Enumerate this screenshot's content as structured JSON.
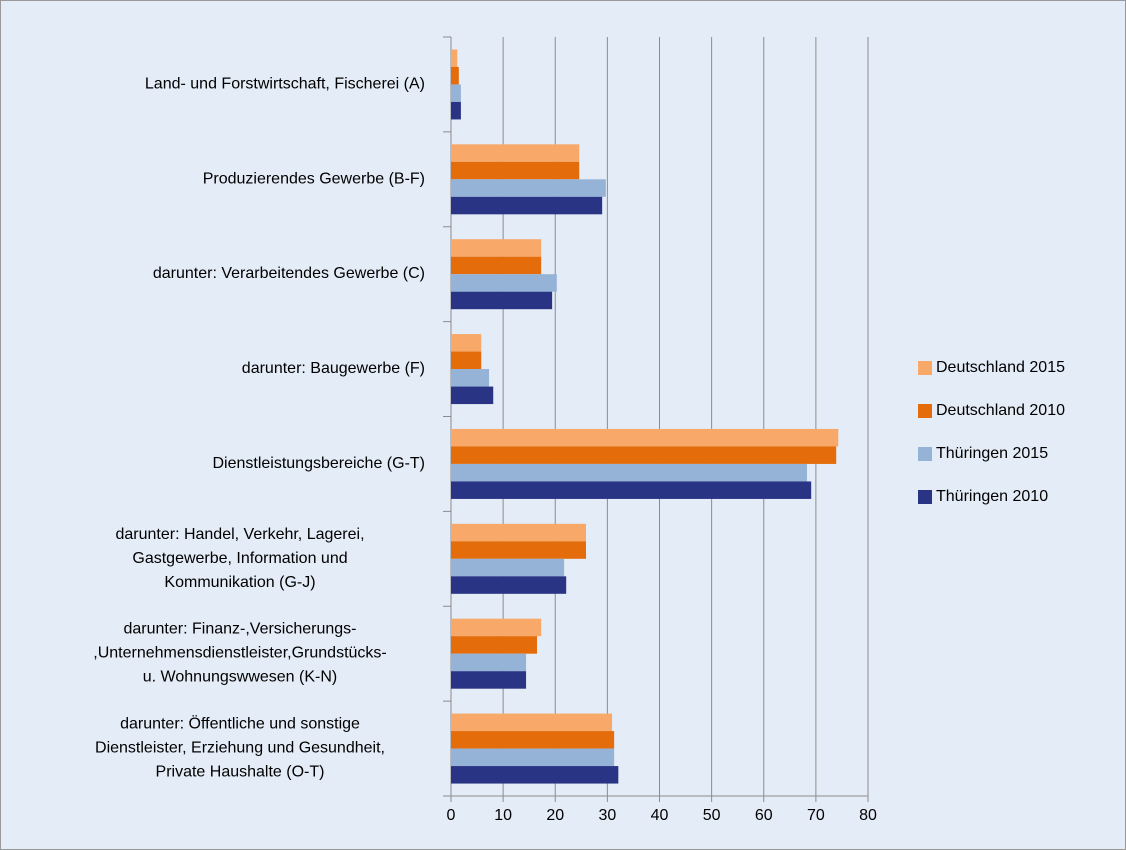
{
  "chart_data": {
    "type": "hbar",
    "categories": [
      "Land- und Forstwirtschaft,  Fischerei (A)",
      "Produzierendes Gewerbe (B-F)",
      "darunter: Verarbeitendes Gewerbe (C)",
      "darunter: Baugewerbe (F)",
      "Dienstleistungsbereiche (G-T)",
      "darunter: Handel, Verkehr, Lagerei,\nGastgewerbe, Information  und\nKommunikation (G-J)",
      "darunter: Finanz-,Versicherungs-\n,Unternehmensdienstleister,Grundstücks-\nu. Wohnungswwesen  (K-N)",
      "darunter: Öffentliche und sonstige\nDienstleister, Erziehung und Gesundheit,\nPrivate Haushalte  (O-T)"
    ],
    "series": [
      {
        "name": "Deutschland 2015",
        "color": "#f8a96a",
        "values": [
          1.2,
          24.6,
          17.3,
          5.8,
          74.3,
          25.9,
          17.3,
          30.9
        ]
      },
      {
        "name": "Deutschland 2010",
        "color": "#e46c0a",
        "values": [
          1.5,
          24.6,
          17.3,
          5.8,
          73.9,
          25.9,
          16.5,
          31.3
        ]
      },
      {
        "name": "Thüringen 2015",
        "color": "#95b3d7",
        "values": [
          1.9,
          29.7,
          20.3,
          7.3,
          68.3,
          21.7,
          14.4,
          31.3
        ]
      },
      {
        "name": "Thüringen 2010",
        "color": "#2a3485",
        "values": [
          1.9,
          29.0,
          19.4,
          8.1,
          69.1,
          22.1,
          14.4,
          32.1
        ]
      }
    ],
    "xlim": [
      0,
      80
    ],
    "xticks": [
      0,
      10,
      20,
      30,
      40,
      50,
      60,
      70,
      80
    ],
    "grid": true,
    "legend": "right"
  }
}
